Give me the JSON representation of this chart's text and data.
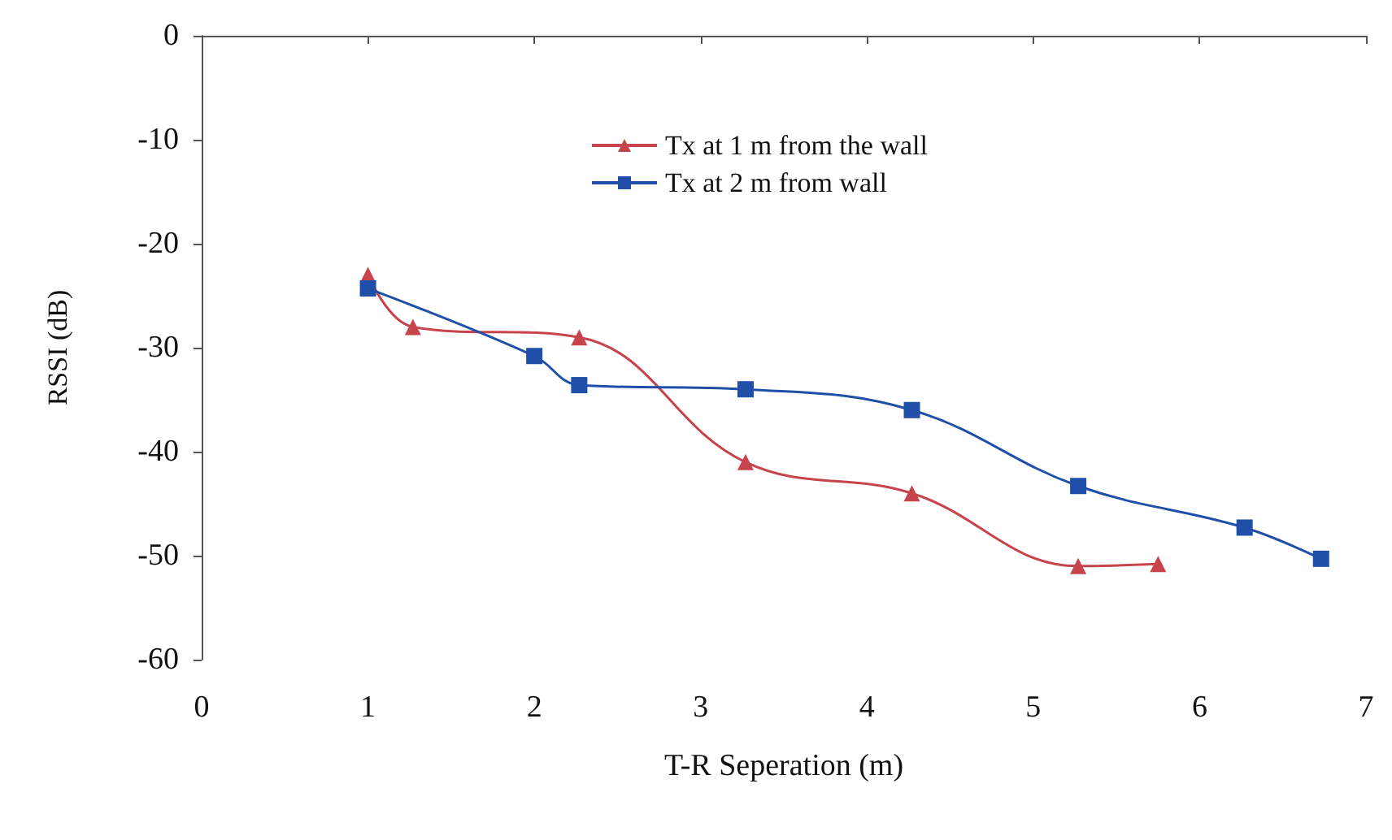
{
  "chart_data": {
    "type": "line",
    "xlabel": "T-R Seperation (m)",
    "ylabel": "RSSI (dB)",
    "xlim": [
      0,
      7
    ],
    "xticks": [
      0,
      1,
      2,
      3,
      4,
      5,
      6,
      7
    ],
    "ylim": [
      -60,
      0
    ],
    "yticks": [
      -60,
      -50,
      -40,
      -30,
      -20,
      -10,
      0
    ],
    "grid": false,
    "legend": "top",
    "series": [
      {
        "name": "Tx at 1 m from the wall",
        "color": "#c8444c",
        "marker": "triangle",
        "x": [
          1,
          1.27,
          2.27,
          3.27,
          4.27,
          5.27,
          5.75
        ],
        "values": [
          -23,
          -28,
          -29,
          -41,
          -44,
          -51,
          -50.8
        ]
      },
      {
        "name": "Tx at 2 m from wall",
        "color": "#1f4fa8",
        "marker": "square",
        "x": [
          1,
          2,
          2.27,
          3.27,
          4.27,
          5.27,
          6.27,
          6.73
        ],
        "values": [
          -24.3,
          -30.8,
          -33.6,
          -34,
          -36,
          -43.3,
          -47.3,
          -50.3
        ]
      }
    ]
  }
}
